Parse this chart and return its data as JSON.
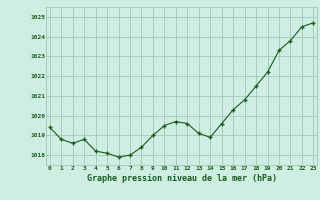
{
  "x": [
    0,
    1,
    2,
    3,
    4,
    5,
    6,
    7,
    8,
    9,
    10,
    11,
    12,
    13,
    14,
    15,
    16,
    17,
    18,
    19,
    20,
    21,
    22,
    23
  ],
  "y": [
    1019.4,
    1018.8,
    1018.6,
    1018.8,
    1018.2,
    1018.1,
    1017.9,
    1018.0,
    1018.4,
    1019.0,
    1019.5,
    1019.7,
    1019.6,
    1019.1,
    1018.9,
    1019.6,
    1020.3,
    1020.8,
    1021.5,
    1022.2,
    1023.3,
    1023.8,
    1024.5,
    1024.7
  ],
  "line_color": "#1a5c1a",
  "marker_color": "#1a5c1a",
  "bg_color": "#ceeee4",
  "grid_color": "#9dbfb0",
  "xlabel": "Graphe pression niveau de la mer (hPa)",
  "xlabel_color": "#1a5c1a",
  "tick_color": "#1a5c1a",
  "ylim": [
    1017.5,
    1025.5
  ],
  "yticks": [
    1018,
    1019,
    1020,
    1021,
    1022,
    1023,
    1024,
    1025
  ],
  "xticks": [
    0,
    1,
    2,
    3,
    4,
    5,
    6,
    7,
    8,
    9,
    10,
    11,
    12,
    13,
    14,
    15,
    16,
    17,
    18,
    19,
    20,
    21,
    22,
    23
  ],
  "xlim": [
    -0.3,
    23.3
  ]
}
